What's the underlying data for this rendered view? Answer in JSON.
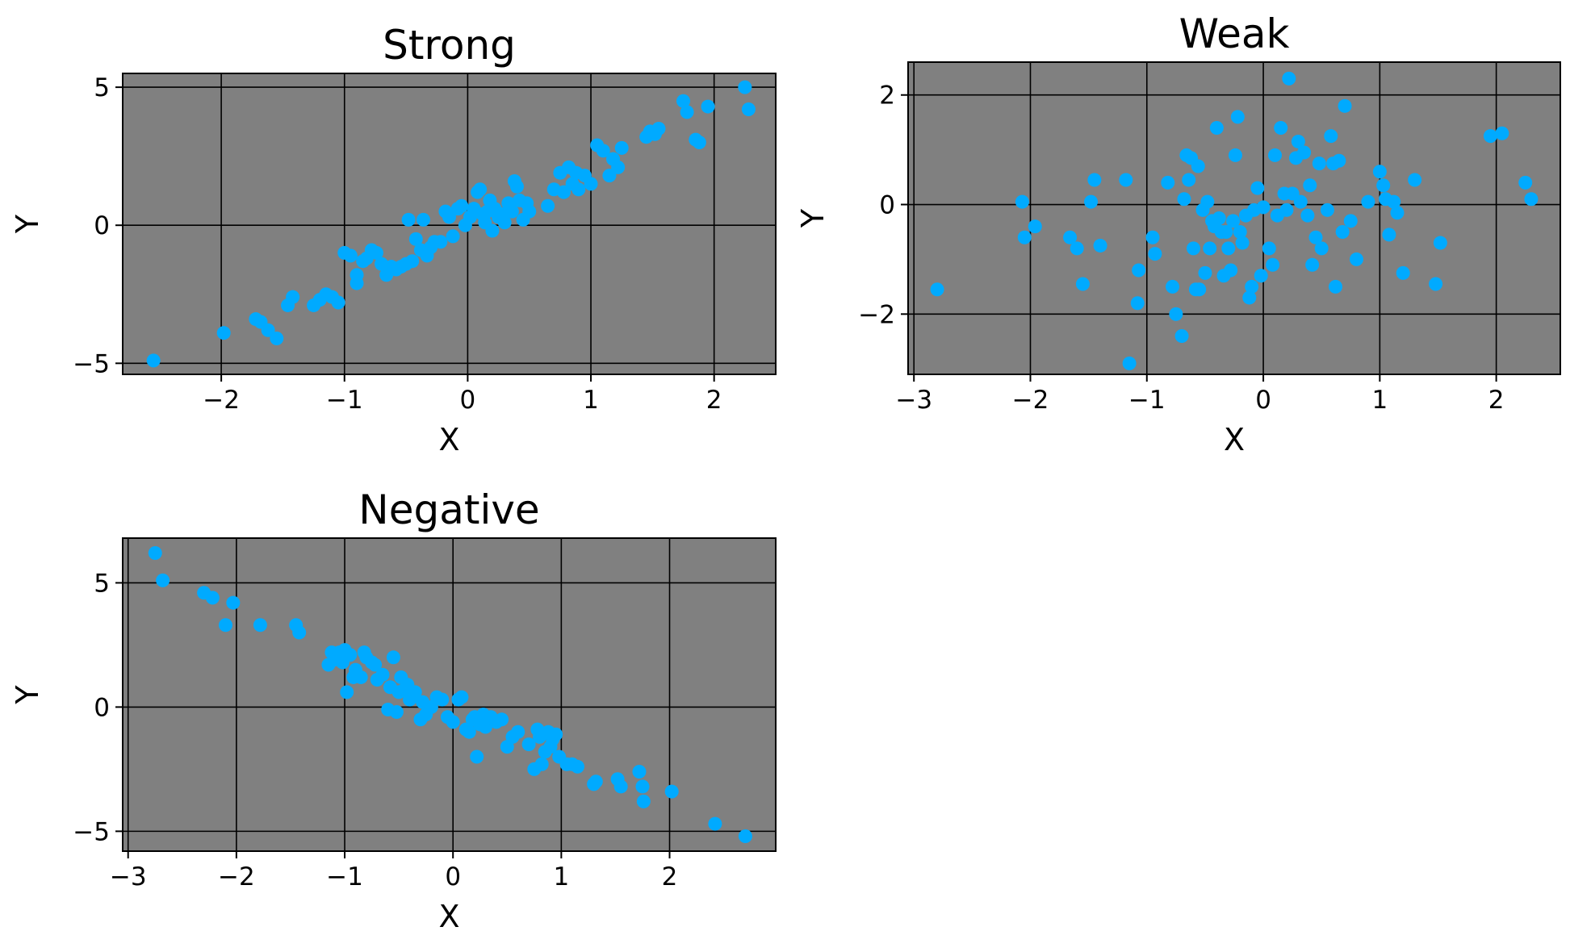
{
  "colors": {
    "panel_bg": "#808080",
    "point": "#00aaff",
    "grid": "#000000"
  },
  "chart_data": [
    {
      "type": "scatter",
      "title": "Strong",
      "xlabel": "X",
      "ylabel": "Y",
      "xlim": [
        -2.8,
        2.5
      ],
      "ylim": [
        -5.4,
        5.5
      ],
      "xticks": [
        -2,
        -1,
        0,
        1,
        2
      ],
      "yticks": [
        -5,
        0,
        5
      ],
      "grid": true,
      "x": [
        -2.55,
        -1.98,
        -1.72,
        -1.68,
        -1.62,
        -1.55,
        -1.46,
        -1.42,
        -1.25,
        -1.2,
        -1.15,
        -1.1,
        -1.05,
        -1.0,
        -0.95,
        -0.9,
        -0.9,
        -0.85,
        -0.82,
        -0.78,
        -0.74,
        -0.7,
        -0.66,
        -0.62,
        -0.58,
        -0.54,
        -0.5,
        -0.48,
        -0.45,
        -0.42,
        -0.38,
        -0.36,
        -0.33,
        -0.3,
        -0.27,
        -0.22,
        -0.18,
        -0.15,
        -0.12,
        -0.08,
        -0.05,
        -0.02,
        0.02,
        0.05,
        0.08,
        0.1,
        0.12,
        0.14,
        0.16,
        0.18,
        0.2,
        0.22,
        0.25,
        0.28,
        0.3,
        0.33,
        0.36,
        0.38,
        0.4,
        0.42,
        0.45,
        0.48,
        0.5,
        0.65,
        0.7,
        0.75,
        0.78,
        0.82,
        0.85,
        0.88,
        0.9,
        0.95,
        1.0,
        1.05,
        1.1,
        1.15,
        1.18,
        1.22,
        1.25,
        1.45,
        1.48,
        1.52,
        1.55,
        1.75,
        1.78,
        1.85,
        1.88,
        1.95,
        2.25,
        2.28
      ],
      "y": [
        -4.9,
        -3.9,
        -3.4,
        -3.5,
        -3.8,
        -4.1,
        -2.9,
        -2.6,
        -2.9,
        -2.7,
        -2.5,
        -2.6,
        -2.8,
        -1.0,
        -1.1,
        -1.8,
        -2.1,
        -1.3,
        -1.2,
        -0.9,
        -1.0,
        -1.4,
        -1.8,
        -1.5,
        -1.6,
        -1.5,
        -1.4,
        0.2,
        -1.3,
        -0.5,
        -0.9,
        0.2,
        -1.1,
        -0.8,
        -0.6,
        -0.6,
        0.5,
        0.3,
        -0.4,
        0.6,
        0.7,
        0.0,
        0.3,
        0.6,
        1.2,
        1.3,
        0.4,
        0.1,
        0.5,
        0.9,
        -0.2,
        0.6,
        0.3,
        0.4,
        0.1,
        0.8,
        0.5,
        1.6,
        1.4,
        0.9,
        0.2,
        0.8,
        0.5,
        0.7,
        1.3,
        1.9,
        1.2,
        2.1,
        1.5,
        1.9,
        1.3,
        1.8,
        1.5,
        2.9,
        2.7,
        1.8,
        2.4,
        2.1,
        2.8,
        3.2,
        3.4,
        3.3,
        3.5,
        4.5,
        4.1,
        3.1,
        3.0,
        4.3,
        5.0,
        4.2
      ]
    },
    {
      "type": "scatter",
      "title": "Weak",
      "xlabel": "X",
      "ylabel": "Y",
      "xlim": [
        -3.05,
        2.55
      ],
      "ylim": [
        -3.1,
        2.6
      ],
      "xticks": [
        -3,
        -2,
        -1,
        0,
        1,
        2
      ],
      "yticks": [
        -2,
        0,
        2
      ],
      "grid": true,
      "x": [
        -2.8,
        -2.07,
        -2.05,
        -1.96,
        -1.66,
        -1.6,
        -1.55,
        -1.48,
        -1.45,
        -1.4,
        -1.18,
        -1.15,
        -1.08,
        -1.07,
        -0.95,
        -0.93,
        -0.82,
        -0.78,
        -0.75,
        -0.7,
        -0.68,
        -0.66,
        -0.64,
        -0.62,
        -0.6,
        -0.58,
        -0.56,
        -0.55,
        -0.52,
        -0.5,
        -0.48,
        -0.46,
        -0.44,
        -0.42,
        -0.4,
        -0.38,
        -0.36,
        -0.34,
        -0.32,
        -0.3,
        -0.28,
        -0.26,
        -0.24,
        -0.22,
        -0.2,
        -0.18,
        -0.15,
        -0.12,
        -0.1,
        -0.08,
        -0.05,
        -0.02,
        0.0,
        0.05,
        0.08,
        0.1,
        0.12,
        0.15,
        0.18,
        0.2,
        0.22,
        0.25,
        0.28,
        0.3,
        0.32,
        0.35,
        0.38,
        0.4,
        0.42,
        0.45,
        0.48,
        0.5,
        0.55,
        0.58,
        0.6,
        0.62,
        0.65,
        0.68,
        0.7,
        0.75,
        0.8,
        0.9,
        1.0,
        1.03,
        1.05,
        1.08,
        1.12,
        1.15,
        1.2,
        1.3,
        1.48,
        1.52,
        1.95,
        2.05,
        2.25,
        2.3
      ],
      "y": [
        -1.55,
        0.05,
        -0.6,
        -0.4,
        -0.6,
        -0.8,
        -1.45,
        0.05,
        0.45,
        -0.75,
        0.45,
        -2.9,
        -1.8,
        -1.2,
        -0.6,
        -0.9,
        0.4,
        -1.5,
        -2.0,
        -2.4,
        0.1,
        0.9,
        0.45,
        0.85,
        -0.8,
        -1.55,
        0.7,
        -1.55,
        -0.1,
        -1.25,
        0.05,
        -0.8,
        -0.3,
        -0.4,
        1.4,
        -0.25,
        -0.5,
        -1.3,
        -0.5,
        -0.8,
        -1.2,
        -0.3,
        0.9,
        1.6,
        -0.5,
        -0.7,
        -0.2,
        -1.7,
        -1.5,
        -0.1,
        0.3,
        -1.3,
        -0.05,
        -0.8,
        -1.1,
        0.9,
        -0.2,
        1.4,
        0.2,
        -0.1,
        2.3,
        0.2,
        0.85,
        1.15,
        0.05,
        0.95,
        -0.2,
        0.35,
        -1.1,
        -0.6,
        0.75,
        -0.8,
        -0.1,
        1.25,
        0.75,
        -1.5,
        0.8,
        -0.5,
        1.8,
        -0.3,
        -1.0,
        0.05,
        0.6,
        0.35,
        0.1,
        -0.55,
        0.05,
        -0.15,
        -1.25,
        0.45,
        -1.45,
        -0.7,
        1.25,
        1.3,
        0.4,
        0.1
      ]
    },
    {
      "type": "scatter",
      "title": "Negative",
      "xlabel": "X",
      "ylabel": "Y",
      "xlim": [
        -3.05,
        2.98
      ],
      "ylim": [
        -5.8,
        6.8
      ],
      "xticks": [
        -3,
        -2,
        -1,
        0,
        1,
        2
      ],
      "yticks": [
        -5,
        0,
        5
      ],
      "grid": true,
      "x": [
        -2.75,
        -2.68,
        -2.3,
        -2.22,
        -2.1,
        -2.03,
        -1.78,
        -1.45,
        -1.42,
        -1.15,
        -1.12,
        -1.1,
        -1.05,
        -1.02,
        -1.0,
        -0.98,
        -0.95,
        -0.92,
        -0.9,
        -0.85,
        -0.82,
        -0.8,
        -0.75,
        -0.72,
        -0.7,
        -0.65,
        -0.6,
        -0.58,
        -0.55,
        -0.52,
        -0.5,
        -0.48,
        -0.45,
        -0.42,
        -0.4,
        -0.38,
        -0.35,
        -0.3,
        -0.28,
        -0.25,
        -0.2,
        -0.15,
        -0.1,
        -0.05,
        0.0,
        0.05,
        0.08,
        0.12,
        0.15,
        0.18,
        0.2,
        0.22,
        0.25,
        0.28,
        0.3,
        0.35,
        0.4,
        0.45,
        0.5,
        0.55,
        0.6,
        0.7,
        0.75,
        0.78,
        0.8,
        0.82,
        0.85,
        0.88,
        0.9,
        0.92,
        0.95,
        0.98,
        1.05,
        1.1,
        1.15,
        1.3,
        1.32,
        1.52,
        1.55,
        1.72,
        1.75,
        1.76,
        2.02,
        2.42,
        2.7
      ],
      "y": [
        6.2,
        5.1,
        4.6,
        4.4,
        3.3,
        4.2,
        3.3,
        3.3,
        3.0,
        1.7,
        2.2,
        1.9,
        2.2,
        1.8,
        2.3,
        0.6,
        2.1,
        1.2,
        1.5,
        1.2,
        2.2,
        2.0,
        1.8,
        1.7,
        1.1,
        1.3,
        -0.1,
        0.8,
        2.0,
        -0.2,
        0.6,
        1.2,
        0.7,
        0.9,
        0.3,
        0.4,
        0.6,
        -0.5,
        0.2,
        -0.3,
        0.0,
        0.4,
        0.3,
        -0.4,
        -0.6,
        0.3,
        0.4,
        -0.9,
        -1.0,
        -0.5,
        -0.4,
        -2.0,
        -0.7,
        -0.3,
        -0.8,
        -0.4,
        -0.6,
        -0.5,
        -1.6,
        -1.2,
        -1.0,
        -1.5,
        -2.5,
        -0.9,
        -1.2,
        -2.3,
        -1.8,
        -1.0,
        -1.6,
        -1.3,
        -1.1,
        -2.0,
        -2.3,
        -2.3,
        -2.4,
        -3.1,
        -3.0,
        -2.9,
        -3.2,
        -2.6,
        -3.2,
        -3.8,
        -3.4,
        -4.7,
        -5.2
      ]
    }
  ]
}
